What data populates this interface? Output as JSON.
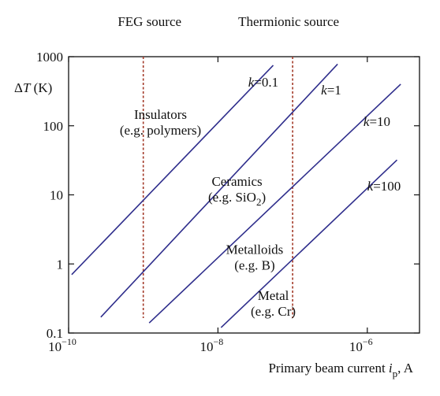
{
  "chart_data": {
    "type": "line",
    "x_scale": "log",
    "y_scale": "log",
    "xlim": [
      1e-10,
      5e-06
    ],
    "ylim": [
      0.1,
      1000
    ],
    "grid": false,
    "legend": "none",
    "x_ticks": [
      {
        "value": 1e-10,
        "base": "10",
        "exp": "−10"
      },
      {
        "value": 1e-08,
        "base": "10",
        "exp": "−8"
      },
      {
        "value": 1e-06,
        "base": "10",
        "exp": "−6"
      }
    ],
    "y_ticks": [
      {
        "value": 0.1,
        "label": "0.1"
      },
      {
        "value": 1,
        "label": "1"
      },
      {
        "value": 10,
        "label": "10"
      },
      {
        "value": 100,
        "label": "100"
      },
      {
        "value": 1000,
        "label": "1000"
      }
    ],
    "ylabel": {
      "delta": "Δ",
      "var": "T",
      "unit": " (K)"
    },
    "xlabel": {
      "text": "Primary beam current ",
      "var": "i",
      "sub": "p",
      "unit": ", A"
    },
    "series": [
      {
        "name": "k=0.1",
        "k": "k",
        "eq": "=0.1",
        "color": "#2f2e8c",
        "x": [
          1.1e-10,
          5.5e-08
        ],
        "y": [
          0.7,
          750
        ]
      },
      {
        "name": "k=1",
        "k": "k",
        "eq": "=1",
        "color": "#2f2e8c",
        "x": [
          2.7e-10,
          4e-07
        ],
        "y": [
          0.17,
          780
        ]
      },
      {
        "name": "k=10",
        "k": "k",
        "eq": "=10",
        "color": "#2f2e8c",
        "x": [
          1.2e-09,
          2.8e-06
        ],
        "y": [
          0.14,
          400
        ]
      },
      {
        "name": "k=100",
        "k": "k",
        "eq": "=100",
        "color": "#2f2e8c",
        "x": [
          1.1e-08,
          2.5e-06
        ],
        "y": [
          0.12,
          32
        ]
      }
    ],
    "reference_lines": [
      {
        "label": "FEG source",
        "x": 1e-09,
        "color": "#a33a28"
      },
      {
        "label": "Thermionic source",
        "x": 1e-07,
        "color": "#a33a28"
      }
    ],
    "annotations": [
      {
        "lines": [
          "Insulators",
          "(e.g. polymers)"
        ],
        "x": 1.7e-09,
        "y": 125
      },
      {
        "lines": [
          "Ceramics",
          "(e.g. SiO"
        ],
        "sub": "2",
        "tail": ")",
        "x": 1.8e-08,
        "y": 13.5
      },
      {
        "lines": [
          "Metalloids",
          "(e.g. B)"
        ],
        "x": 3.1e-08,
        "y": 1.4
      },
      {
        "lines": [
          "Metal",
          "(e.g. Cr)"
        ],
        "x": 5.5e-08,
        "y": 0.3
      }
    ]
  }
}
